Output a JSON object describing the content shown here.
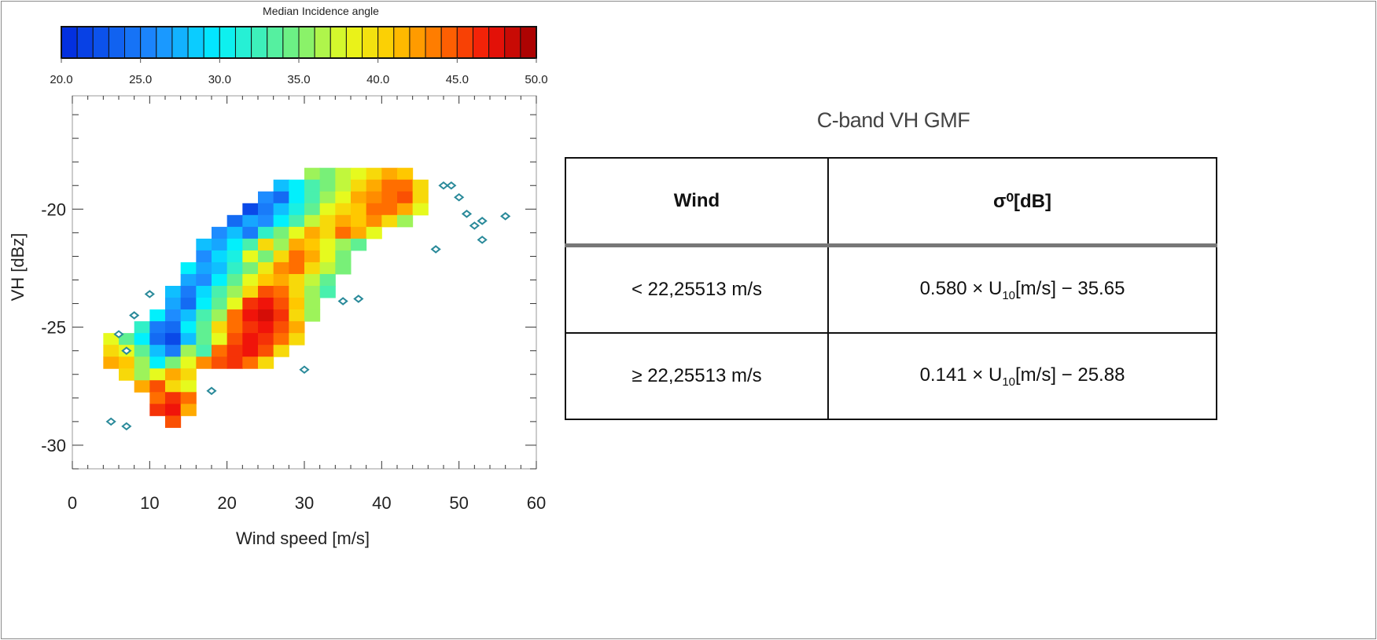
{
  "chart_data": {
    "type": "heatmap",
    "title": "",
    "colorbar": {
      "title": "Median Incidence angle",
      "range": [
        20,
        50
      ],
      "step": 1,
      "ticks": [
        "20.0",
        "25.0",
        "30.0",
        "35.0",
        "40.0",
        "45.0",
        "50.0"
      ]
    },
    "xlabel": "Wind speed [m/s]",
    "ylabel": "VH  [dBz]",
    "xlim": [
      0,
      60
    ],
    "ylim": [
      -31,
      -15.2
    ],
    "xticks": [
      "0",
      "10",
      "20",
      "30",
      "40",
      "50",
      "60"
    ],
    "yticks": [
      "-20",
      "-25",
      "-30"
    ],
    "cell_size": {
      "wind": 2,
      "vh": 0.5
    },
    "rows": [
      {
        "vh": -18.5,
        "w0": 30,
        "angles": [
          36,
          35,
          37,
          38,
          40,
          42,
          41
        ]
      },
      {
        "vh": -19.0,
        "w0": 26,
        "angles": [
          28,
          30,
          33,
          35,
          37,
          40,
          42,
          44,
          44,
          40
        ]
      },
      {
        "vh": -19.5,
        "w0": 24,
        "angles": [
          26,
          24,
          30,
          33,
          36,
          38,
          42,
          43,
          44,
          45,
          40
        ]
      },
      {
        "vh": -20.0,
        "w0": 22,
        "angles": [
          22,
          25,
          28,
          31,
          34,
          38,
          40,
          41,
          44,
          44,
          42,
          38
        ]
      },
      {
        "vh": -20.5,
        "w0": 20,
        "angles": [
          24,
          27,
          26,
          30,
          33,
          37,
          40,
          42,
          41,
          43,
          40,
          36
        ]
      },
      {
        "vh": -21.0,
        "w0": 18,
        "angles": [
          26,
          28,
          25,
          32,
          35,
          38,
          42,
          40,
          44,
          42,
          38
        ]
      },
      {
        "vh": -21.5,
        "w0": 16,
        "angles": [
          28,
          27,
          30,
          33,
          40,
          36,
          42,
          41,
          38,
          36,
          34
        ]
      },
      {
        "vh": -22.0,
        "w0": 16,
        "angles": [
          26,
          29,
          31,
          38,
          35,
          40,
          44,
          42,
          38,
          35
        ]
      },
      {
        "vh": -22.5,
        "w0": 14,
        "angles": [
          30,
          27,
          28,
          32,
          35,
          39,
          43,
          44,
          40,
          37,
          35
        ]
      },
      {
        "vh": -23.0,
        "w0": 14,
        "angles": [
          27,
          26,
          30,
          34,
          38,
          41,
          42,
          40,
          37,
          34
        ]
      },
      {
        "vh": -23.5,
        "w0": 12,
        "angles": [
          28,
          25,
          29,
          33,
          36,
          40,
          45,
          44,
          40,
          36,
          33
        ]
      },
      {
        "vh": -24.0,
        "w0": 12,
        "angles": [
          27,
          24,
          30,
          34,
          38,
          46,
          47,
          45,
          41,
          36
        ]
      },
      {
        "vh": -24.5,
        "w0": 10,
        "angles": [
          30,
          26,
          28,
          33,
          36,
          44,
          47,
          48,
          46,
          40,
          36
        ]
      },
      {
        "vh": -25.0,
        "w0": 8,
        "angles": [
          32,
          25,
          24,
          30,
          34,
          40,
          44,
          46,
          47,
          45,
          42
        ]
      },
      {
        "vh": -25.5,
        "w0": 4,
        "angles": [
          38,
          34,
          30,
          24,
          22,
          28,
          34,
          38,
          45,
          47,
          46,
          44,
          40
        ]
      },
      {
        "vh": -26.0,
        "w0": 4,
        "angles": [
          40,
          38,
          34,
          28,
          25,
          36,
          33,
          44,
          46,
          47,
          45,
          40
        ]
      },
      {
        "vh": -26.5,
        "w0": 4,
        "angles": [
          42,
          41,
          36,
          30,
          35,
          38,
          43,
          45,
          46,
          44,
          40
        ]
      },
      {
        "vh": -27.0,
        "w0": 6,
        "angles": [
          40,
          36,
          38,
          42,
          40
        ]
      },
      {
        "vh": -27.5,
        "w0": 8,
        "angles": [
          42,
          45,
          40,
          38
        ]
      },
      {
        "vh": -28.0,
        "w0": 10,
        "angles": [
          44,
          46,
          44
        ]
      },
      {
        "vh": -28.5,
        "w0": 10,
        "angles": [
          46,
          47,
          42
        ]
      },
      {
        "vh": -29.0,
        "w0": 12,
        "angles": [
          45
        ]
      }
    ],
    "isolated_points": [
      [
        48,
        -19
      ],
      [
        49,
        -19
      ],
      [
        50,
        -19.5
      ],
      [
        51,
        -20.2
      ],
      [
        52,
        -20.7
      ],
      [
        53,
        -20.5
      ],
      [
        53,
        -21.3
      ],
      [
        56,
        -20.3
      ],
      [
        47,
        -21.7
      ],
      [
        30,
        -26.8
      ],
      [
        18,
        -27.7
      ],
      [
        6,
        -25.3
      ],
      [
        7,
        -26
      ],
      [
        5,
        -29
      ],
      [
        7,
        -29.2
      ],
      [
        8,
        -24.5
      ],
      [
        10,
        -23.6
      ],
      [
        35,
        -23.9
      ],
      [
        37,
        -23.8
      ]
    ]
  },
  "table": {
    "title": "C-band VH GMF",
    "headers": [
      "Wind",
      "σ⁰[dB]"
    ],
    "rows": [
      {
        "wind": "< 22,25513 m/s",
        "coef": "0.580 × U",
        "sub": "10",
        "rest": "[m/s] − 35.65"
      },
      {
        "wind": "≥ 22,25513 m/s",
        "coef": "0.141 × U",
        "sub": "10",
        "rest": "[m/s] − 25.88"
      }
    ]
  }
}
